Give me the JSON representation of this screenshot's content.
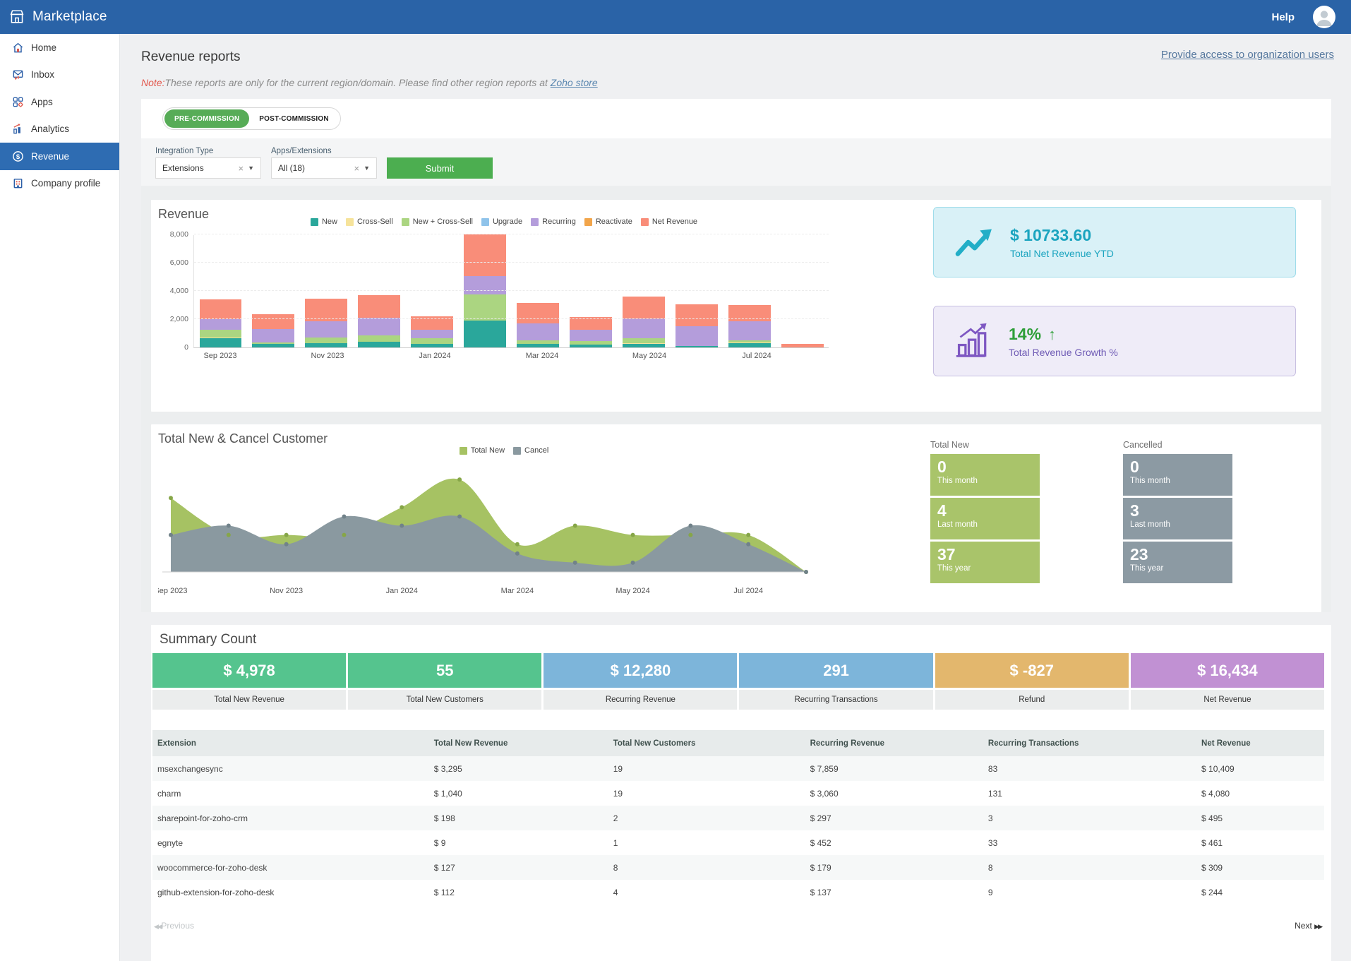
{
  "topbar": {
    "brand": "Marketplace",
    "help_label": "Help"
  },
  "sidebar": {
    "items": [
      {
        "label": "Home"
      },
      {
        "label": "Inbox"
      },
      {
        "label": "Apps"
      },
      {
        "label": "Analytics"
      },
      {
        "label": "Revenue"
      },
      {
        "label": "Company profile"
      }
    ]
  },
  "page": {
    "title": "Revenue reports",
    "access_link": "Provide access to organization users",
    "note_label": "Note:",
    "note_text": "These reports are only for the current region/domain. Please find other region reports at ",
    "note_link": "Zoho store"
  },
  "controls": {
    "toggle_active": "PRE-COMMISSION",
    "toggle_inactive": "POST-COMMISSION",
    "filter1_label": "Integration Type",
    "filter1_value": "Extensions",
    "filter2_label": "Apps/Extensions",
    "filter2_value": "All (18)",
    "submit_label": "Submit"
  },
  "stat_cards": [
    {
      "value": "$ 10733.60",
      "label": "Total Net Revenue YTD",
      "bg": "#d9f1f7",
      "accent": "#1ba4bf"
    },
    {
      "value": "14%",
      "label": "Total Revenue Growth %",
      "bg": "#efecf8",
      "accent": "#6f5bb5",
      "value_color": "#2e9e38"
    }
  ],
  "customer_stats": {
    "total_new": {
      "title": "Total New",
      "color": "#a9c46a",
      "boxes": [
        {
          "value": "0",
          "label": "This month"
        },
        {
          "value": "4",
          "label": "Last month"
        },
        {
          "value": "37",
          "label": "This year"
        }
      ]
    },
    "cancelled": {
      "title": "Cancelled",
      "color": "#8c9aa3",
      "boxes": [
        {
          "value": "0",
          "label": "This month"
        },
        {
          "value": "3",
          "label": "Last month"
        },
        {
          "value": "23",
          "label": "This year"
        }
      ]
    }
  },
  "summary": {
    "title": "Summary Count",
    "items": [
      {
        "value": "$ 4,978",
        "label": "Total New Revenue",
        "color": "#55c48e"
      },
      {
        "value": "55",
        "label": "Total New Customers",
        "color": "#55c48e"
      },
      {
        "value": "$ 12,280",
        "label": "Recurring Revenue",
        "color": "#7db5da"
      },
      {
        "value": "291",
        "label": "Recurring Transactions",
        "color": "#7db5da"
      },
      {
        "value": "$ -827",
        "label": "Refund",
        "color": "#e3b76d"
      },
      {
        "value": "$ 16,434",
        "label": "Net Revenue",
        "color": "#c191d3"
      }
    ]
  },
  "table": {
    "headers": [
      "Extension",
      "Total New Revenue",
      "Total New Customers",
      "Recurring Revenue",
      "Recurring Transactions",
      "Net Revenue"
    ],
    "rows": [
      [
        "msexchangesync",
        "$ 3,295",
        "19",
        "$ 7,859",
        "83",
        "$ 10,409"
      ],
      [
        "charm",
        "$ 1,040",
        "19",
        "$ 3,060",
        "131",
        "$ 4,080"
      ],
      [
        "sharepoint-for-zoho-crm",
        "$ 198",
        "2",
        "$ 297",
        "3",
        "$ 495"
      ],
      [
        "egnyte",
        "$ 9",
        "1",
        "$ 452",
        "33",
        "$ 461"
      ],
      [
        "woocommerce-for-zoho-desk",
        "$ 127",
        "8",
        "$ 179",
        "8",
        "$ 309"
      ],
      [
        "github-extension-for-zoho-desk",
        "$ 112",
        "4",
        "$ 137",
        "9",
        "$ 244"
      ]
    ]
  },
  "pagination": {
    "prev": "Previous",
    "next": "Next"
  },
  "chart_data": [
    {
      "type": "bar",
      "stacked": true,
      "title": "Revenue",
      "categories": [
        "Sep 2023",
        "Oct 2023",
        "Nov 2023",
        "Dec 2023",
        "Jan 2024",
        "Feb 2024",
        "Mar 2024",
        "Apr 2024",
        "May 2024",
        "Jun 2024",
        "Jul 2024",
        "Aug 2024"
      ],
      "x_tick_labels": [
        "Sep 2023",
        "Nov 2023",
        "Jan 2024",
        "Mar 2024",
        "May 2024",
        "Jul 2024"
      ],
      "x_tick_indices": [
        0,
        2,
        4,
        6,
        8,
        10
      ],
      "ylim": [
        0,
        8000
      ],
      "ytick_values": [
        0,
        2000,
        4000,
        6000,
        8000
      ],
      "yticks": [
        "0",
        "2,000",
        "4,000",
        "6,000",
        "8,000"
      ],
      "grid": true,
      "legend_position": "top",
      "series": [
        {
          "name": "New",
          "color": "#2aa79b",
          "values": [
            650,
            250,
            300,
            380,
            270,
            1900,
            270,
            180,
            270,
            80,
            300,
            0
          ]
        },
        {
          "name": "Cross-Sell",
          "color": "#f6e39b",
          "values": [
            40,
            0,
            0,
            0,
            0,
            0,
            0,
            0,
            40,
            0,
            40,
            0
          ]
        },
        {
          "name": "New + Cross-Sell",
          "color": "#abd581",
          "values": [
            550,
            100,
            400,
            450,
            400,
            1850,
            230,
            280,
            330,
            0,
            180,
            0
          ]
        },
        {
          "name": "Upgrade",
          "color": "#8fc3ea",
          "values": [
            0,
            0,
            0,
            0,
            0,
            0,
            0,
            0,
            0,
            0,
            0,
            0
          ]
        },
        {
          "name": "Recurring",
          "color": "#b49ddb",
          "values": [
            750,
            950,
            1150,
            1250,
            600,
            1300,
            1200,
            800,
            1400,
            1420,
            1320,
            0
          ]
        },
        {
          "name": "Reactivate",
          "color": "#f2a54a",
          "values": [
            0,
            0,
            0,
            0,
            0,
            0,
            0,
            0,
            0,
            0,
            0,
            0
          ]
        },
        {
          "name": "Net Revenue",
          "color": "#f98d79",
          "values": [
            1400,
            1050,
            1600,
            1620,
            950,
            2950,
            1450,
            900,
            1550,
            1550,
            1180,
            250
          ]
        }
      ]
    },
    {
      "type": "area",
      "title": "Total New & Cancel Customer",
      "categories": [
        "Sep 2023",
        "Oct 2023",
        "Nov 2023",
        "Dec 2023",
        "Jan 2024",
        "Feb 2024",
        "Mar 2024",
        "Apr 2024",
        "May 2024",
        "Jun 2024",
        "Jul 2024",
        "Aug 2024"
      ],
      "x_tick_labels": [
        "Sep 2023",
        "Nov 2023",
        "Jan 2024",
        "Mar 2024",
        "May 2024",
        "Jul 2024"
      ],
      "x_tick_indices": [
        0,
        2,
        4,
        6,
        8,
        10
      ],
      "ylim": [
        0,
        11
      ],
      "grid": false,
      "legend_position": "top",
      "series": [
        {
          "name": "Total New",
          "color": "#a6c263",
          "marker_color": "#86a648",
          "values": [
            8,
            4,
            4,
            4,
            7,
            10,
            3,
            5,
            4,
            4,
            4,
            0
          ]
        },
        {
          "name": "Cancel",
          "color": "#8a99a0",
          "marker_color": "#71828a",
          "values": [
            4,
            5,
            3,
            6,
            5,
            6,
            2,
            1,
            1,
            5,
            3,
            0
          ]
        }
      ]
    }
  ]
}
